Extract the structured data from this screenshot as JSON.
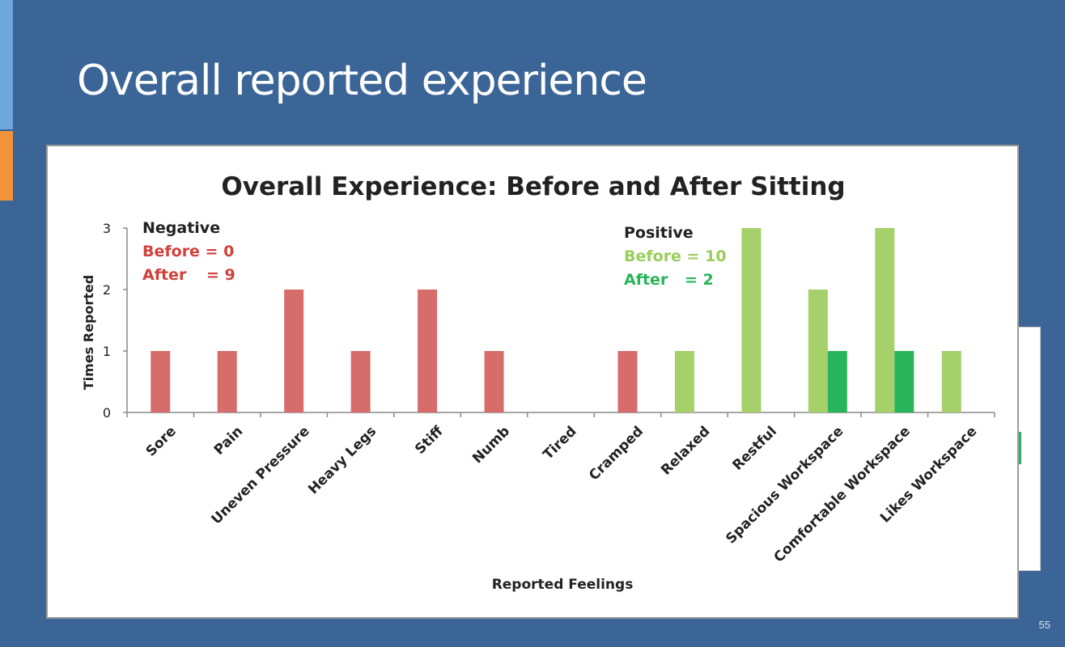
{
  "slide": {
    "title": "Overall reported experience",
    "page_number": "55"
  },
  "colors": {
    "background": "#3a6596",
    "negative_before": "#d66d6a",
    "negative_text": "#d0413d",
    "positive_before": "#a5d06a",
    "positive_after": "#27b45a",
    "positive_before_text": "#9acd5a"
  },
  "legend": {
    "negative": {
      "heading": "Negative",
      "before": "Before = 0",
      "after_label": "After",
      "after_value": "= 9"
    },
    "positive": {
      "heading": "Positive",
      "before": "Before = 10",
      "after_label": "After",
      "after_value": "= 2"
    }
  },
  "chart_data": {
    "type": "bar",
    "title": "Overall Experience: Before and After Sitting",
    "xlabel": "Reported Feelings",
    "ylabel": "Times Reported",
    "ylim": [
      0,
      3
    ],
    "yticks": [
      0,
      1,
      2,
      3
    ],
    "grid": false,
    "categories": [
      "Sore",
      "Pain",
      "Uneven Pressure",
      "Heavy Legs",
      "Stiff",
      "Numb",
      "Tired",
      "Cramped",
      "Relaxed",
      "Restful",
      "Spacious Workspace",
      "Comfortable Workspace",
      "Likes Workspace"
    ],
    "series": [
      {
        "values": [
          0,
          0,
          0,
          0,
          0,
          0,
          0,
          0,
          1,
          3,
          2,
          3,
          1
        ],
        "color": "#a5d06a"
      },
      {
        "values": [
          1,
          1,
          2,
          1,
          2,
          1,
          0,
          1,
          0,
          0,
          1,
          1,
          0
        ],
        "color_negative": "#d66d6a",
        "color_positive": "#27b45a"
      }
    ],
    "negative_categories_count": 8
  }
}
